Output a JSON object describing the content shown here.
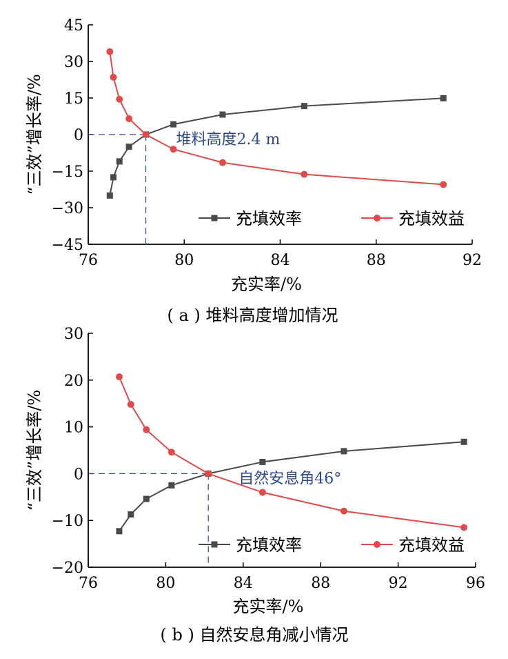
{
  "chart_data": [
    {
      "type": "line",
      "caption": "( a ) 堆料高度增加情况",
      "xlabel": "充实率/%",
      "ylabel": "“三效”增长率/%",
      "xlim": [
        76,
        92
      ],
      "ylim": [
        -45,
        45
      ],
      "xticks": [
        76,
        80,
        84,
        88,
        92
      ],
      "yticks": [
        -45,
        -30,
        -15,
        0,
        15,
        30,
        45
      ],
      "grid": false,
      "legend_position": "lower-right",
      "annotation": {
        "text": "堆料高度2.4 m",
        "x": 78.4,
        "y": 0
      },
      "series": [
        {
          "name": "充填效率",
          "color": "#4a4a4a",
          "marker": "square",
          "x": [
            76.9,
            77.05,
            77.3,
            77.7,
            78.4,
            79.55,
            81.6,
            85.0,
            90.8
          ],
          "y": [
            -25.0,
            -17.5,
            -11.0,
            -5.0,
            0,
            4.2,
            8.2,
            11.7,
            14.9
          ]
        },
        {
          "name": "充填效益",
          "color": "#e04a4a",
          "marker": "circle",
          "x": [
            76.9,
            77.05,
            77.3,
            77.7,
            78.4,
            79.55,
            81.6,
            85.0,
            90.8
          ],
          "y": [
            34.0,
            23.5,
            14.5,
            6.5,
            0,
            -6.0,
            -11.5,
            -16.3,
            -20.5
          ]
        }
      ]
    },
    {
      "type": "line",
      "caption": "( b ) 自然安息角减小情况",
      "xlabel": "充实率/%",
      "ylabel": "“三效”增长率/%",
      "xlim": [
        76,
        96
      ],
      "ylim": [
        -20,
        30
      ],
      "xticks": [
        76,
        80,
        84,
        88,
        92,
        96
      ],
      "yticks": [
        -20,
        -10,
        0,
        10,
        20,
        30
      ],
      "grid": false,
      "legend_position": "lower-right",
      "annotation": {
        "text": "自然安息角46°",
        "x": 82.2,
        "y": 0
      },
      "series": [
        {
          "name": "充填效率",
          "color": "#4a4a4a",
          "marker": "square",
          "x": [
            77.6,
            78.2,
            79.0,
            80.3,
            82.2,
            85.0,
            89.2,
            95.4
          ],
          "y": [
            -12.3,
            -8.7,
            -5.4,
            -2.5,
            0,
            2.5,
            4.8,
            6.8
          ]
        },
        {
          "name": "充填效益",
          "color": "#e04a4a",
          "marker": "circle",
          "x": [
            77.6,
            78.2,
            79.0,
            80.3,
            82.2,
            85.0,
            89.2,
            95.4
          ],
          "y": [
            20.7,
            14.8,
            9.4,
            4.6,
            0,
            -4.0,
            -8.0,
            -11.5
          ]
        }
      ]
    }
  ]
}
